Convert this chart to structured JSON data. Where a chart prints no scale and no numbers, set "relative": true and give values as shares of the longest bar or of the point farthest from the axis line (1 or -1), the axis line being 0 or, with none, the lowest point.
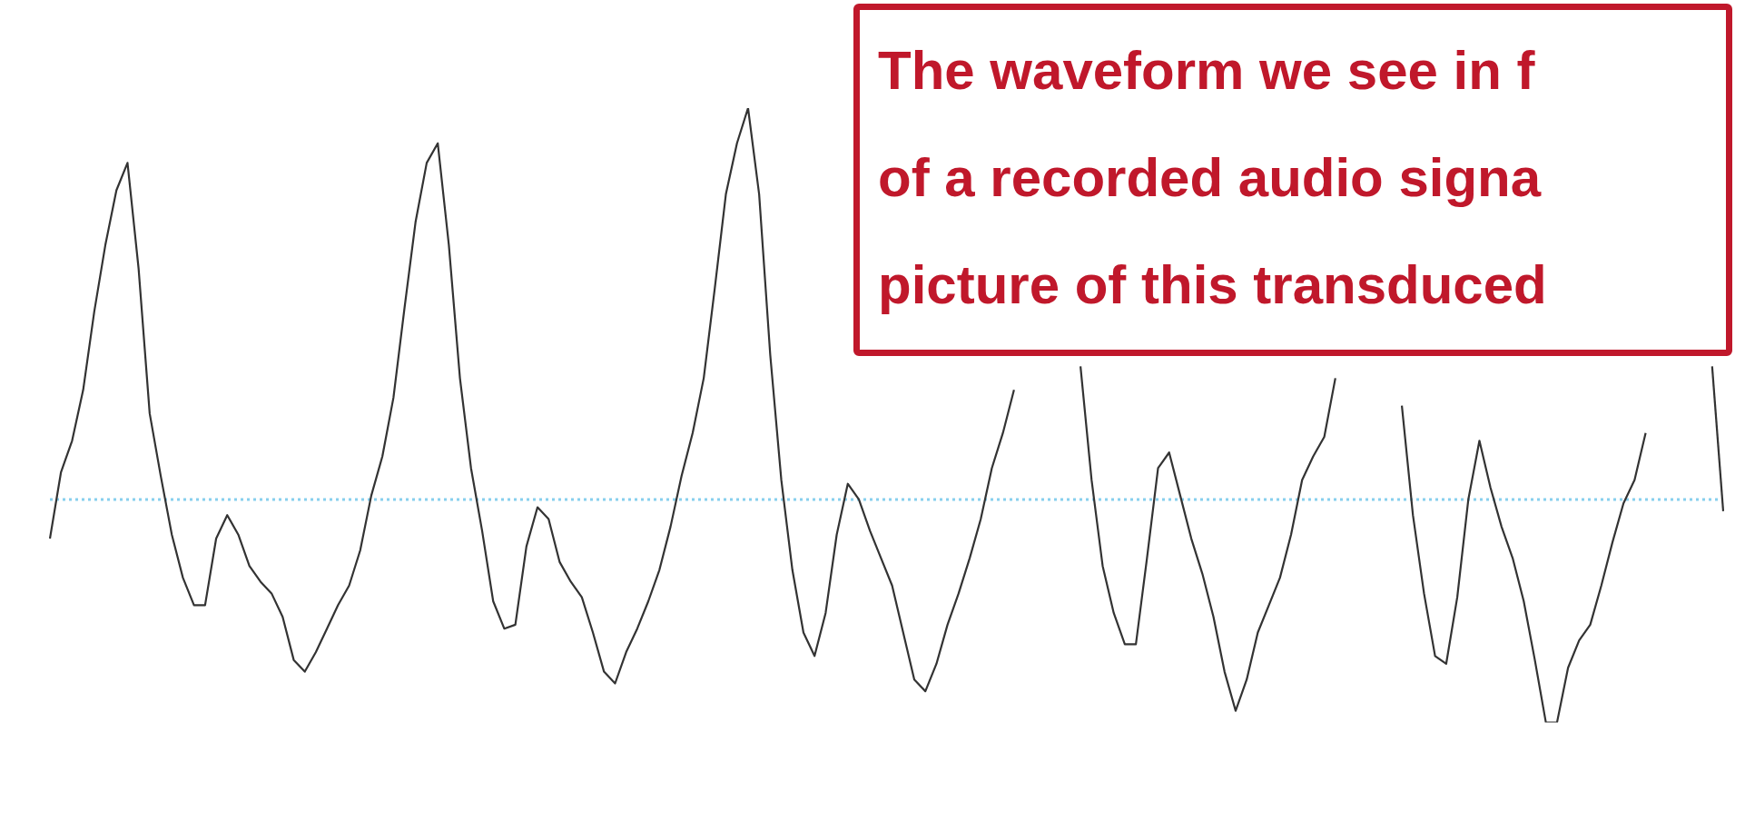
{
  "chart_data": {
    "type": "line",
    "relative": true,
    "marker": "none",
    "line_style": "solid",
    "categories": [
      null,
      null,
      null,
      null,
      null,
      null,
      null,
      null,
      null,
      null,
      null,
      null,
      null,
      null,
      null,
      null,
      null,
      null,
      null,
      null,
      null,
      null,
      null,
      null,
      null,
      null,
      null,
      null,
      null,
      null,
      null,
      null,
      null,
      null,
      null,
      null,
      null,
      null,
      null,
      null,
      null,
      null,
      null,
      null,
      null,
      null,
      null,
      null,
      null,
      null,
      null,
      null,
      null,
      null,
      null,
      null,
      null,
      null,
      null,
      null,
      null,
      null,
      null,
      null,
      null,
      null,
      null,
      null,
      null,
      null,
      null,
      null,
      null,
      null,
      null,
      null,
      null,
      null,
      null,
      null,
      null,
      null,
      null,
      null,
      null,
      null,
      null,
      null,
      null,
      null,
      null,
      null,
      null,
      null,
      null,
      null,
      null,
      null,
      null,
      null,
      null,
      null,
      null,
      null,
      null,
      null,
      null,
      null,
      null,
      null,
      null,
      null,
      null,
      null,
      null,
      null,
      null,
      null,
      null,
      null,
      null,
      null,
      null,
      null,
      null,
      null,
      null,
      null,
      null,
      null,
      null,
      null,
      null,
      null,
      null,
      null,
      null,
      null,
      null,
      null,
      null,
      null,
      null,
      null,
      null,
      null,
      null,
      null,
      null,
      null,
      null,
      null
    ],
    "series": [
      {
        "color": "#333333",
        "values": [
          -0.1,
          0.07,
          0.15,
          0.28,
          0.48,
          0.65,
          0.79,
          0.86,
          0.59,
          0.22,
          0.06,
          -0.09,
          -0.2,
          -0.27,
          -0.27,
          -0.1,
          -0.04,
          -0.09,
          -0.17,
          -0.21,
          -0.24,
          -0.3,
          -0.41,
          -0.44,
          -0.39,
          -0.33,
          -0.27,
          -0.22,
          -0.13,
          0.01,
          0.11,
          0.26,
          0.49,
          0.71,
          0.86,
          0.91,
          0.65,
          0.31,
          0.08,
          -0.08,
          -0.26,
          -0.33,
          -0.32,
          -0.12,
          -0.02,
          -0.05,
          -0.16,
          -0.21,
          -0.25,
          -0.34,
          -0.44,
          -0.47,
          -0.39,
          -0.33,
          -0.26,
          -0.18,
          -0.07,
          0.06,
          0.17,
          0.31,
          0.54,
          0.78,
          0.91,
          1.0,
          0.78,
          0.37,
          0.05,
          -0.18,
          -0.34,
          -0.4,
          -0.29,
          -0.09,
          0.04,
          0.0,
          -0.08,
          -0.15,
          -0.22,
          -0.34,
          -0.46,
          -0.49,
          -0.42,
          -0.32,
          -0.24,
          -0.15,
          -0.05,
          0.08,
          0.17,
          0.28,
          null,
          null,
          null,
          null,
          null,
          null,
          null,
          null,
          null,
          null,
          null,
          null,
          null,
          null,
          null,
          null,
          null,
          null,
          null,
          null,
          null,
          null,
          null,
          null,
          null,
          null,
          null,
          null,
          null,
          null,
          null,
          null,
          null,
          null,
          null,
          null,
          null,
          null,
          null,
          null,
          null,
          null,
          null,
          null,
          null,
          null,
          null,
          null,
          null,
          null,
          null,
          null,
          null,
          null,
          null,
          null,
          null,
          null,
          null,
          null,
          null,
          null,
          null,
          null
        ]
      },
      {
        "color": "#333333",
        "values": [
          null,
          null,
          null,
          null,
          null,
          null,
          null,
          null,
          null,
          null,
          null,
          null,
          null,
          null,
          null,
          null,
          null,
          null,
          null,
          null,
          null,
          null,
          null,
          null,
          null,
          null,
          null,
          null,
          null,
          null,
          null,
          null,
          null,
          null,
          null,
          null,
          null,
          null,
          null,
          null,
          null,
          null,
          null,
          null,
          null,
          null,
          null,
          null,
          null,
          null,
          null,
          null,
          null,
          null,
          null,
          null,
          null,
          null,
          null,
          null,
          null,
          null,
          null,
          null,
          null,
          null,
          null,
          null,
          null,
          null,
          null,
          null,
          null,
          null,
          null,
          null,
          null,
          null,
          null,
          null,
          null,
          null,
          null,
          null,
          null,
          null,
          null,
          null,
          null,
          null,
          null,
          null,
          null,
          0.34,
          0.05,
          -0.17,
          -0.29,
          -0.37,
          -0.37,
          -0.15,
          0.08,
          0.12,
          0.01,
          -0.1,
          -0.19,
          -0.3,
          -0.44,
          -0.54,
          -0.46,
          -0.34,
          -0.27,
          -0.2,
          -0.09,
          0.05,
          0.11,
          0.16,
          0.31,
          null,
          null,
          null,
          null,
          null,
          null,
          null,
          null,
          null,
          null,
          null,
          null,
          null,
          null,
          null,
          null,
          null,
          null,
          null,
          null,
          null,
          null,
          null,
          null,
          null,
          null,
          null,
          null,
          null,
          null,
          null,
          null,
          null,
          null,
          null
        ]
      },
      {
        "color": "#333333",
        "values": [
          null,
          null,
          null,
          null,
          null,
          null,
          null,
          null,
          null,
          null,
          null,
          null,
          null,
          null,
          null,
          null,
          null,
          null,
          null,
          null,
          null,
          null,
          null,
          null,
          null,
          null,
          null,
          null,
          null,
          null,
          null,
          null,
          null,
          null,
          null,
          null,
          null,
          null,
          null,
          null,
          null,
          null,
          null,
          null,
          null,
          null,
          null,
          null,
          null,
          null,
          null,
          null,
          null,
          null,
          null,
          null,
          null,
          null,
          null,
          null,
          null,
          null,
          null,
          null,
          null,
          null,
          null,
          null,
          null,
          null,
          null,
          null,
          null,
          null,
          null,
          null,
          null,
          null,
          null,
          null,
          null,
          null,
          null,
          null,
          null,
          null,
          null,
          null,
          null,
          null,
          null,
          null,
          null,
          null,
          null,
          null,
          null,
          null,
          null,
          null,
          null,
          null,
          null,
          null,
          null,
          null,
          null,
          null,
          null,
          null,
          null,
          null,
          null,
          null,
          null,
          null,
          null,
          null,
          null,
          null,
          null,
          null,
          0.24,
          -0.04,
          -0.24,
          -0.4,
          -0.42,
          -0.25,
          0.0,
          0.15,
          0.03,
          -0.07,
          -0.15,
          -0.26,
          -0.41,
          -0.57,
          -0.57,
          -0.43,
          -0.36,
          -0.32,
          -0.22,
          -0.11,
          -0.01,
          0.05,
          0.17,
          null,
          null,
          null,
          null,
          null,
          null,
          null
        ]
      },
      {
        "color": "#333333",
        "values": [
          null,
          null,
          null,
          null,
          null,
          null,
          null,
          null,
          null,
          null,
          null,
          null,
          null,
          null,
          null,
          null,
          null,
          null,
          null,
          null,
          null,
          null,
          null,
          null,
          null,
          null,
          null,
          null,
          null,
          null,
          null,
          null,
          null,
          null,
          null,
          null,
          null,
          null,
          null,
          null,
          null,
          null,
          null,
          null,
          null,
          null,
          null,
          null,
          null,
          null,
          null,
          null,
          null,
          null,
          null,
          null,
          null,
          null,
          null,
          null,
          null,
          null,
          null,
          null,
          null,
          null,
          null,
          null,
          null,
          null,
          null,
          null,
          null,
          null,
          null,
          null,
          null,
          null,
          null,
          null,
          null,
          null,
          null,
          null,
          null,
          null,
          null,
          null,
          null,
          null,
          null,
          null,
          null,
          null,
          null,
          null,
          null,
          null,
          null,
          null,
          null,
          null,
          null,
          null,
          null,
          null,
          null,
          null,
          null,
          null,
          null,
          null,
          null,
          null,
          null,
          null,
          null,
          null,
          null,
          null,
          null,
          null,
          null,
          null,
          null,
          null,
          null,
          null,
          null,
          null,
          null,
          null,
          null,
          null,
          null,
          null,
          null,
          null,
          null,
          null,
          null,
          null,
          null,
          null,
          null,
          null,
          null,
          null,
          null,
          null,
          0.34,
          -0.03
        ]
      }
    ],
    "ref_lines": [
      {
        "axis": "y",
        "value": 0,
        "color": "#87cfee",
        "line_style": "dotted"
      }
    ],
    "annotations": [
      "The waveform we see in f\nof a recorded audio signa\npicture of this transduced"
    ]
  }
}
